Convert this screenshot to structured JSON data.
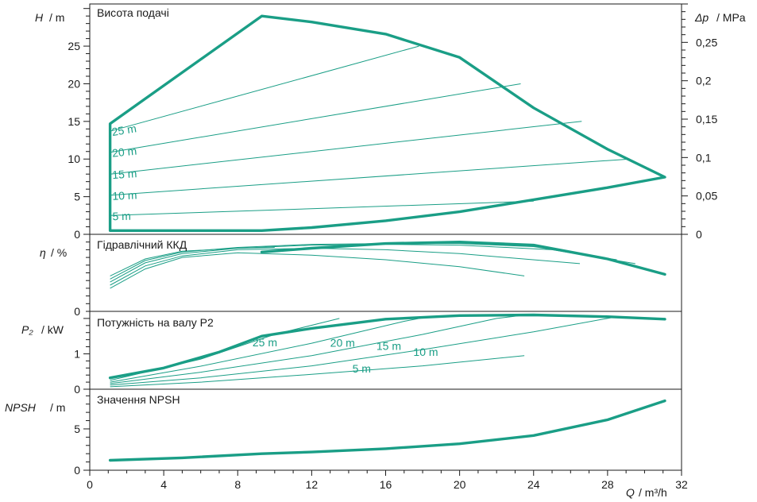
{
  "colors": {
    "curve": "#1a9e86",
    "axis": "#1a1a1a",
    "background": "#ffffff"
  },
  "x_axis": {
    "label": "Q",
    "unit": "/ m³/h",
    "ticks": [
      0,
      4,
      8,
      12,
      16,
      20,
      24,
      28,
      32
    ],
    "tick_labels": [
      "0",
      "4",
      "8",
      "12",
      "16",
      "20",
      "24",
      "28",
      "32"
    ],
    "minor_step": 1,
    "range": [
      0,
      32
    ]
  },
  "chart_data": [
    {
      "type": "line",
      "id": "head",
      "title": "Висота подачі",
      "ylabel": "H",
      "yunit": "/ m",
      "ylim": [
        0,
        30.6
      ],
      "yticks": [
        0,
        5,
        10,
        15,
        20,
        25
      ],
      "ytick_labels": [
        "0",
        "5",
        "10",
        "15",
        "20",
        "25"
      ],
      "y2label": "Δp",
      "y2unit": "/ MPa",
      "y2ticks": [
        0,
        0.05,
        0.1,
        0.15,
        0.2,
        0.25
      ],
      "y2tick_labels": [
        "0",
        "0,05",
        "0,1",
        "0,15",
        "0,2",
        "0,25"
      ],
      "y2lim": [
        0,
        0.3
      ],
      "envelope": [
        [
          1.1,
          0.5
        ],
        [
          9.3,
          0.5
        ],
        [
          12,
          0.9
        ],
        [
          16,
          1.8
        ],
        [
          20,
          3.0
        ],
        [
          24,
          4.6
        ],
        [
          28,
          6.2
        ],
        [
          31.1,
          7.6
        ],
        [
          28,
          11.3
        ],
        [
          24,
          16.8
        ],
        [
          20,
          23.5
        ],
        [
          16,
          26.6
        ],
        [
          12,
          28.2
        ],
        [
          9.3,
          29
        ],
        [
          1.1,
          14.7
        ],
        [
          1.1,
          0.5
        ]
      ],
      "series": [
        {
          "label": "5 m",
          "points": [
            [
              1.1,
              2.5
            ],
            [
              24,
              4.4
            ]
          ]
        },
        {
          "label": "10 m",
          "points": [
            [
              1.1,
              5.2
            ],
            [
              29.2,
              10
            ]
          ]
        },
        {
          "label": "15 m",
          "points": [
            [
              1.1,
              8.0
            ],
            [
              26.6,
              15
            ]
          ]
        },
        {
          "label": "20 m",
          "points": [
            [
              1.1,
              10.9
            ],
            [
              23.3,
              20
            ]
          ]
        },
        {
          "label": "25 m",
          "points": [
            [
              1.1,
              13.7
            ],
            [
              17.8,
              25
            ]
          ]
        }
      ]
    },
    {
      "type": "line",
      "id": "efficiency",
      "title": "Гідравлічний ККД",
      "ylabel": "η",
      "yunit": "/ %",
      "ylim": [
        0,
        100
      ],
      "yticks": [
        0
      ],
      "ytick_labels": [
        "0"
      ],
      "main": [
        [
          9.3,
          77
        ],
        [
          12,
          82
        ],
        [
          16,
          88
        ],
        [
          20,
          90
        ],
        [
          24,
          86
        ],
        [
          28,
          68
        ],
        [
          31.1,
          48
        ]
      ],
      "series": [
        {
          "points": [
            [
              1.1,
              30
            ],
            [
              3,
              55
            ],
            [
              5,
              70
            ],
            [
              8,
              76
            ],
            [
              12,
              73
            ],
            [
              16,
              67
            ],
            [
              20,
              58
            ],
            [
              23.5,
              46
            ]
          ]
        },
        {
          "points": [
            [
              1.1,
              34
            ],
            [
              3,
              59
            ],
            [
              5,
              72
            ],
            [
              8,
              80
            ],
            [
              12,
              82
            ],
            [
              16,
              80
            ],
            [
              20,
              75
            ],
            [
              26.5,
              62
            ]
          ]
        },
        {
          "points": [
            [
              1.1,
              38
            ],
            [
              3,
              63
            ],
            [
              5,
              75
            ],
            [
              8,
              82
            ],
            [
              12,
              86
            ],
            [
              16,
              87
            ],
            [
              20,
              86
            ],
            [
              25,
              80
            ],
            [
              29.5,
              62
            ]
          ]
        },
        {
          "points": [
            [
              1.1,
              42
            ],
            [
              3,
              66
            ],
            [
              5,
              77
            ],
            [
              8,
              83
            ],
            [
              12,
              87
            ],
            [
              16,
              88
            ],
            [
              20,
              88
            ],
            [
              24,
              84
            ],
            [
              28.5,
              67
            ]
          ]
        },
        {
          "points": [
            [
              1.1,
              46
            ],
            [
              3,
              68
            ],
            [
              5,
              78
            ],
            [
              8,
              82
            ],
            [
              10,
              83
            ]
          ]
        }
      ]
    },
    {
      "type": "line",
      "id": "power",
      "title": "Потужність на валу P2",
      "ylabel": "P₂",
      "yunit": "/ kW",
      "ylim": [
        0,
        2.2
      ],
      "yticks": [
        0,
        1
      ],
      "ytick_labels": [
        "0",
        "1"
      ],
      "main": [
        [
          1.1,
          0.32
        ],
        [
          4,
          0.6
        ],
        [
          7,
          1.05
        ],
        [
          9.3,
          1.5
        ],
        [
          12,
          1.72
        ],
        [
          16,
          1.98
        ],
        [
          20,
          2.08
        ],
        [
          24,
          2.1
        ],
        [
          28,
          2.05
        ],
        [
          31.1,
          1.98
        ]
      ],
      "series": [
        {
          "label": "5 m",
          "points": [
            [
              1.1,
              0.07
            ],
            [
              6,
              0.2
            ],
            [
              12,
              0.42
            ],
            [
              18,
              0.66
            ],
            [
              23.5,
              0.95
            ]
          ]
        },
        {
          "label": "10 m",
          "points": [
            [
              1.1,
              0.12
            ],
            [
              6,
              0.32
            ],
            [
              12,
              0.66
            ],
            [
              18,
              1.12
            ],
            [
              24,
              1.62
            ],
            [
              28.5,
              2.05
            ]
          ]
        },
        {
          "label": "15 m",
          "points": [
            [
              1.1,
              0.16
            ],
            [
              6,
              0.48
            ],
            [
              12,
              0.95
            ],
            [
              18,
              1.55
            ],
            [
              22,
              2.0
            ],
            [
              23.3,
              2.08
            ]
          ]
        },
        {
          "label": "20 m",
          "points": [
            [
              1.1,
              0.2
            ],
            [
              6,
              0.65
            ],
            [
              12,
              1.3
            ],
            [
              17,
              1.92
            ],
            [
              18.3,
              2.05
            ]
          ]
        },
        {
          "label": "25 m",
          "points": [
            [
              1.1,
              0.25
            ],
            [
              6,
              0.85
            ],
            [
              10,
              1.55
            ],
            [
              13.5,
              2.0
            ]
          ]
        }
      ]
    },
    {
      "type": "line",
      "id": "npsh",
      "title": "Значення NPSH",
      "ylabel": "NPSH",
      "yunit": "/ m",
      "ylim": [
        0,
        9.8
      ],
      "yticks": [
        0,
        5
      ],
      "ytick_labels": [
        "0",
        "5"
      ],
      "main": [
        [
          1.1,
          1.2
        ],
        [
          5,
          1.5
        ],
        [
          9.3,
          2.0
        ],
        [
          12,
          2.2
        ],
        [
          16,
          2.6
        ],
        [
          20,
          3.2
        ],
        [
          24,
          4.2
        ],
        [
          28,
          6.1
        ],
        [
          31.1,
          8.4
        ]
      ]
    }
  ]
}
